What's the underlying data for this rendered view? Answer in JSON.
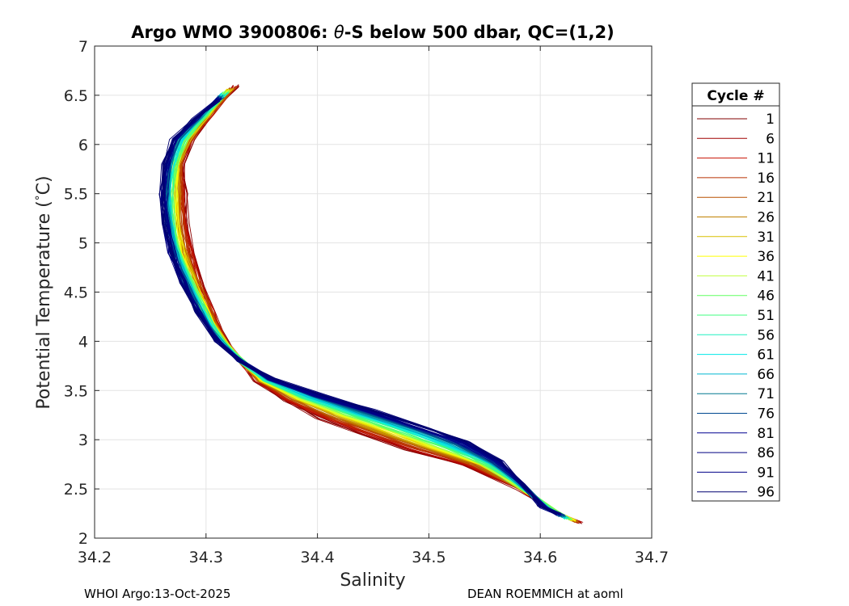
{
  "chart_data": {
    "type": "line",
    "title_prefix": "Argo WMO 3900806: ",
    "title_symbol": "θ",
    "title_suffix": "-S below 500 dbar,  QC=(1,2)",
    "xlabel": "Salinity",
    "ylabel_prefix": "Potential Temperature (",
    "ylabel_degree": "°",
    "ylabel_suffix": "C)",
    "xlim": [
      34.2,
      34.7
    ],
    "ylim": [
      2,
      7
    ],
    "xticks": [
      34.2,
      34.3,
      34.4,
      34.5,
      34.6,
      34.7
    ],
    "yticks": [
      2,
      2.5,
      3,
      3.5,
      4,
      4.5,
      5,
      5.5,
      6,
      6.5,
      7
    ],
    "grid": true,
    "legend_title": "Cycle #",
    "legend_position": "outside-right",
    "legend_entries": [
      "1",
      "6",
      "11",
      "16",
      "21",
      "26",
      "31",
      "36",
      "41",
      "46",
      "51",
      "56",
      "61",
      "66",
      "71",
      "76",
      "81",
      "86",
      "91",
      "96"
    ],
    "colors": [
      "#800000",
      "#a00000",
      "#c81000",
      "#b83000",
      "#b85000",
      "#c08000",
      "#d8c000",
      "#ffff00",
      "#c0ff40",
      "#60ff60",
      "#40ff80",
      "#20f0c0",
      "#00e8e8",
      "#00b8d0",
      "#007890",
      "#004890",
      "#000090",
      "#000080",
      "#000088",
      "#000070"
    ],
    "profile_count": 100,
    "anchor_profiles": [
      {
        "cycle": 1,
        "points": [
          [
            34.328,
            6.6
          ],
          [
            34.305,
            6.3
          ],
          [
            34.288,
            6.05
          ],
          [
            34.279,
            5.8
          ],
          [
            34.282,
            5.5
          ],
          [
            34.283,
            5.2
          ],
          [
            34.288,
            4.9
          ],
          [
            34.296,
            4.6
          ],
          [
            34.306,
            4.3
          ],
          [
            34.318,
            4.0
          ],
          [
            34.33,
            3.8
          ],
          [
            34.345,
            3.6
          ],
          [
            34.37,
            3.4
          ],
          [
            34.4,
            3.22
          ],
          [
            34.44,
            3.05
          ],
          [
            34.48,
            2.9
          ],
          [
            34.53,
            2.75
          ],
          [
            34.58,
            2.5
          ],
          [
            34.61,
            2.28
          ],
          [
            34.637,
            2.15
          ]
        ]
      },
      {
        "cycle": 41,
        "points": [
          [
            34.32,
            6.55
          ],
          [
            34.3,
            6.3
          ],
          [
            34.282,
            6.05
          ],
          [
            34.273,
            5.8
          ],
          [
            34.27,
            5.5
          ],
          [
            34.271,
            5.2
          ],
          [
            34.277,
            4.9
          ],
          [
            34.287,
            4.6
          ],
          [
            34.3,
            4.3
          ],
          [
            34.315,
            4.0
          ],
          [
            34.332,
            3.8
          ],
          [
            34.352,
            3.6
          ],
          [
            34.385,
            3.42
          ],
          [
            34.425,
            3.25
          ],
          [
            34.465,
            3.1
          ],
          [
            34.51,
            2.92
          ],
          [
            34.55,
            2.75
          ],
          [
            34.585,
            2.5
          ],
          [
            34.61,
            2.3
          ],
          [
            34.628,
            2.18
          ]
        ]
      },
      {
        "cycle": 96,
        "points": [
          [
            34.31,
            6.45
          ],
          [
            34.288,
            6.25
          ],
          [
            34.27,
            6.05
          ],
          [
            34.262,
            5.8
          ],
          [
            34.26,
            5.5
          ],
          [
            34.262,
            5.2
          ],
          [
            34.268,
            4.9
          ],
          [
            34.278,
            4.6
          ],
          [
            34.292,
            4.3
          ],
          [
            34.31,
            4.0
          ],
          [
            34.33,
            3.8
          ],
          [
            34.36,
            3.62
          ],
          [
            34.405,
            3.45
          ],
          [
            34.45,
            3.3
          ],
          [
            34.5,
            3.12
          ],
          [
            34.535,
            2.98
          ],
          [
            34.565,
            2.78
          ],
          [
            34.585,
            2.55
          ],
          [
            34.6,
            2.32
          ],
          [
            34.615,
            2.25
          ]
        ]
      }
    ]
  },
  "footer": {
    "left": "WHOI Argo:13-Oct-2025",
    "right": "DEAN ROEMMICH at aoml"
  }
}
